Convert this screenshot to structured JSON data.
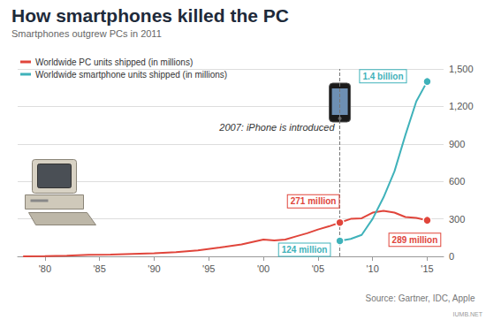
{
  "chart_data": {
    "type": "line",
    "title": "How smartphones killed the PC",
    "subtitle": "Smartphones outgrew PCs in 2011",
    "series": [
      {
        "name": "Worldwide PC units shipped (in millions)",
        "color": "#e0453b",
        "x": [
          1978,
          1980,
          1982,
          1984,
          1986,
          1988,
          1990,
          1992,
          1994,
          1996,
          1998,
          2000,
          2001,
          2002,
          2003,
          2004,
          2005,
          2006,
          2007,
          2008,
          2009,
          2010,
          2011,
          2012,
          2013,
          2014,
          2015
        ],
        "values": [
          0,
          1,
          5,
          12,
          15,
          20,
          24,
          33,
          48,
          70,
          95,
          135,
          128,
          135,
          160,
          185,
          215,
          240,
          271,
          300,
          305,
          350,
          365,
          350,
          315,
          308,
          289
        ],
        "annotations": [
          {
            "x": 2007,
            "y": 271,
            "text": "271 million"
          },
          {
            "x": 2015,
            "y": 289,
            "text": "289 million"
          }
        ]
      },
      {
        "name": "Worldwide smartphone units shipped (in millions)",
        "color": "#3fb2ba",
        "x": [
          2007,
          2008,
          2009,
          2010,
          2011,
          2012,
          2013,
          2014,
          2015
        ],
        "values": [
          124,
          140,
          172,
          300,
          472,
          680,
          970,
          1240,
          1400
        ],
        "annotations": [
          {
            "x": 2007,
            "y": 124,
            "text": "124 million"
          },
          {
            "x": 2015,
            "y": 1400,
            "text": "1.4 billion"
          }
        ]
      }
    ],
    "xlim": [
      1977.5,
      2016.5
    ],
    "xticks": [
      {
        "value": 1980,
        "label": "'80"
      },
      {
        "value": 1985,
        "label": "'85"
      },
      {
        "value": 1990,
        "label": "'90"
      },
      {
        "value": 1995,
        "label": "'95"
      },
      {
        "value": 2000,
        "label": "'00"
      },
      {
        "value": 2005,
        "label": "'05"
      },
      {
        "value": 2010,
        "label": "'10"
      },
      {
        "value": 2015,
        "label": "'15"
      }
    ],
    "ylim": [
      0,
      1500
    ],
    "yticks": [
      0,
      300,
      600,
      900,
      {
        "value": 1200,
        "label": "1,200"
      },
      {
        "value": 1500,
        "label": "1,500"
      }
    ],
    "grid": true,
    "legend": "upper left",
    "reference_line": {
      "x": 2007,
      "label": "2007: iPhone is introduced"
    },
    "source": "Source: Gartner, IDC, Apple",
    "watermark": "IUMB.NET"
  }
}
